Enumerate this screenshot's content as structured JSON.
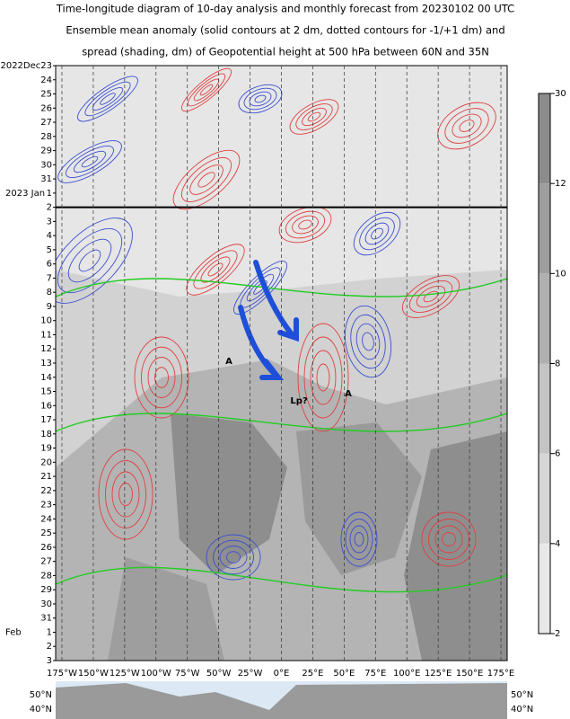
{
  "title_lines": [
    "Time-longitude diagram of 10-day analysis and monthly forecast from 20230102 00 UTC",
    "Ensemble mean anomaly (solid contours at 2 dm, dotted contours for -1/+1 dm) and",
    "spread (shading, dm) of Geopotential height at 500 hPa between 60N and 35N"
  ],
  "chart_data": {
    "type": "hovmoller",
    "y_labels": [
      "2022Dec23",
      "24",
      "25",
      "26",
      "27",
      "28",
      "29",
      "30",
      "31",
      "1",
      "2",
      "3",
      "4",
      "5",
      "6",
      "7",
      "8",
      "9",
      "10",
      "11",
      "12",
      "13",
      "14",
      "15",
      "16",
      "17",
      "18",
      "19",
      "20",
      "21",
      "22",
      "23",
      "24",
      "25",
      "26",
      "27",
      "28",
      "29",
      "30",
      "31",
      "1",
      "2",
      "3"
    ],
    "y_label_prefixes": [
      {
        "row": 9,
        "text": "2023 Jan"
      },
      {
        "row": 40,
        "text": "Feb"
      }
    ],
    "highlight_color": "#e02020",
    "highlighted_rows": [
      2,
      9,
      16,
      23,
      30,
      37
    ],
    "analysis_divider_row": 10,
    "x_labels": [
      "175°W",
      "150°W",
      "125°W",
      "100°W",
      "75°W",
      "50°W",
      "25°W",
      "0°E",
      "25°E",
      "50°E",
      "75°E",
      "100°E",
      "125°E",
      "150°E",
      "175°E"
    ],
    "colorbar_ticks": [
      30,
      12,
      10,
      8,
      6,
      4,
      2
    ],
    "colorbar_color": "#1a237e",
    "annotations": [
      {
        "text": "A",
        "color": "#e53935"
      },
      {
        "text": "Lp?",
        "color": "#1e4fd8"
      },
      {
        "text": "A",
        "color": "#e53935"
      }
    ],
    "map_labels": [
      "50°N",
      "40°N"
    ]
  }
}
